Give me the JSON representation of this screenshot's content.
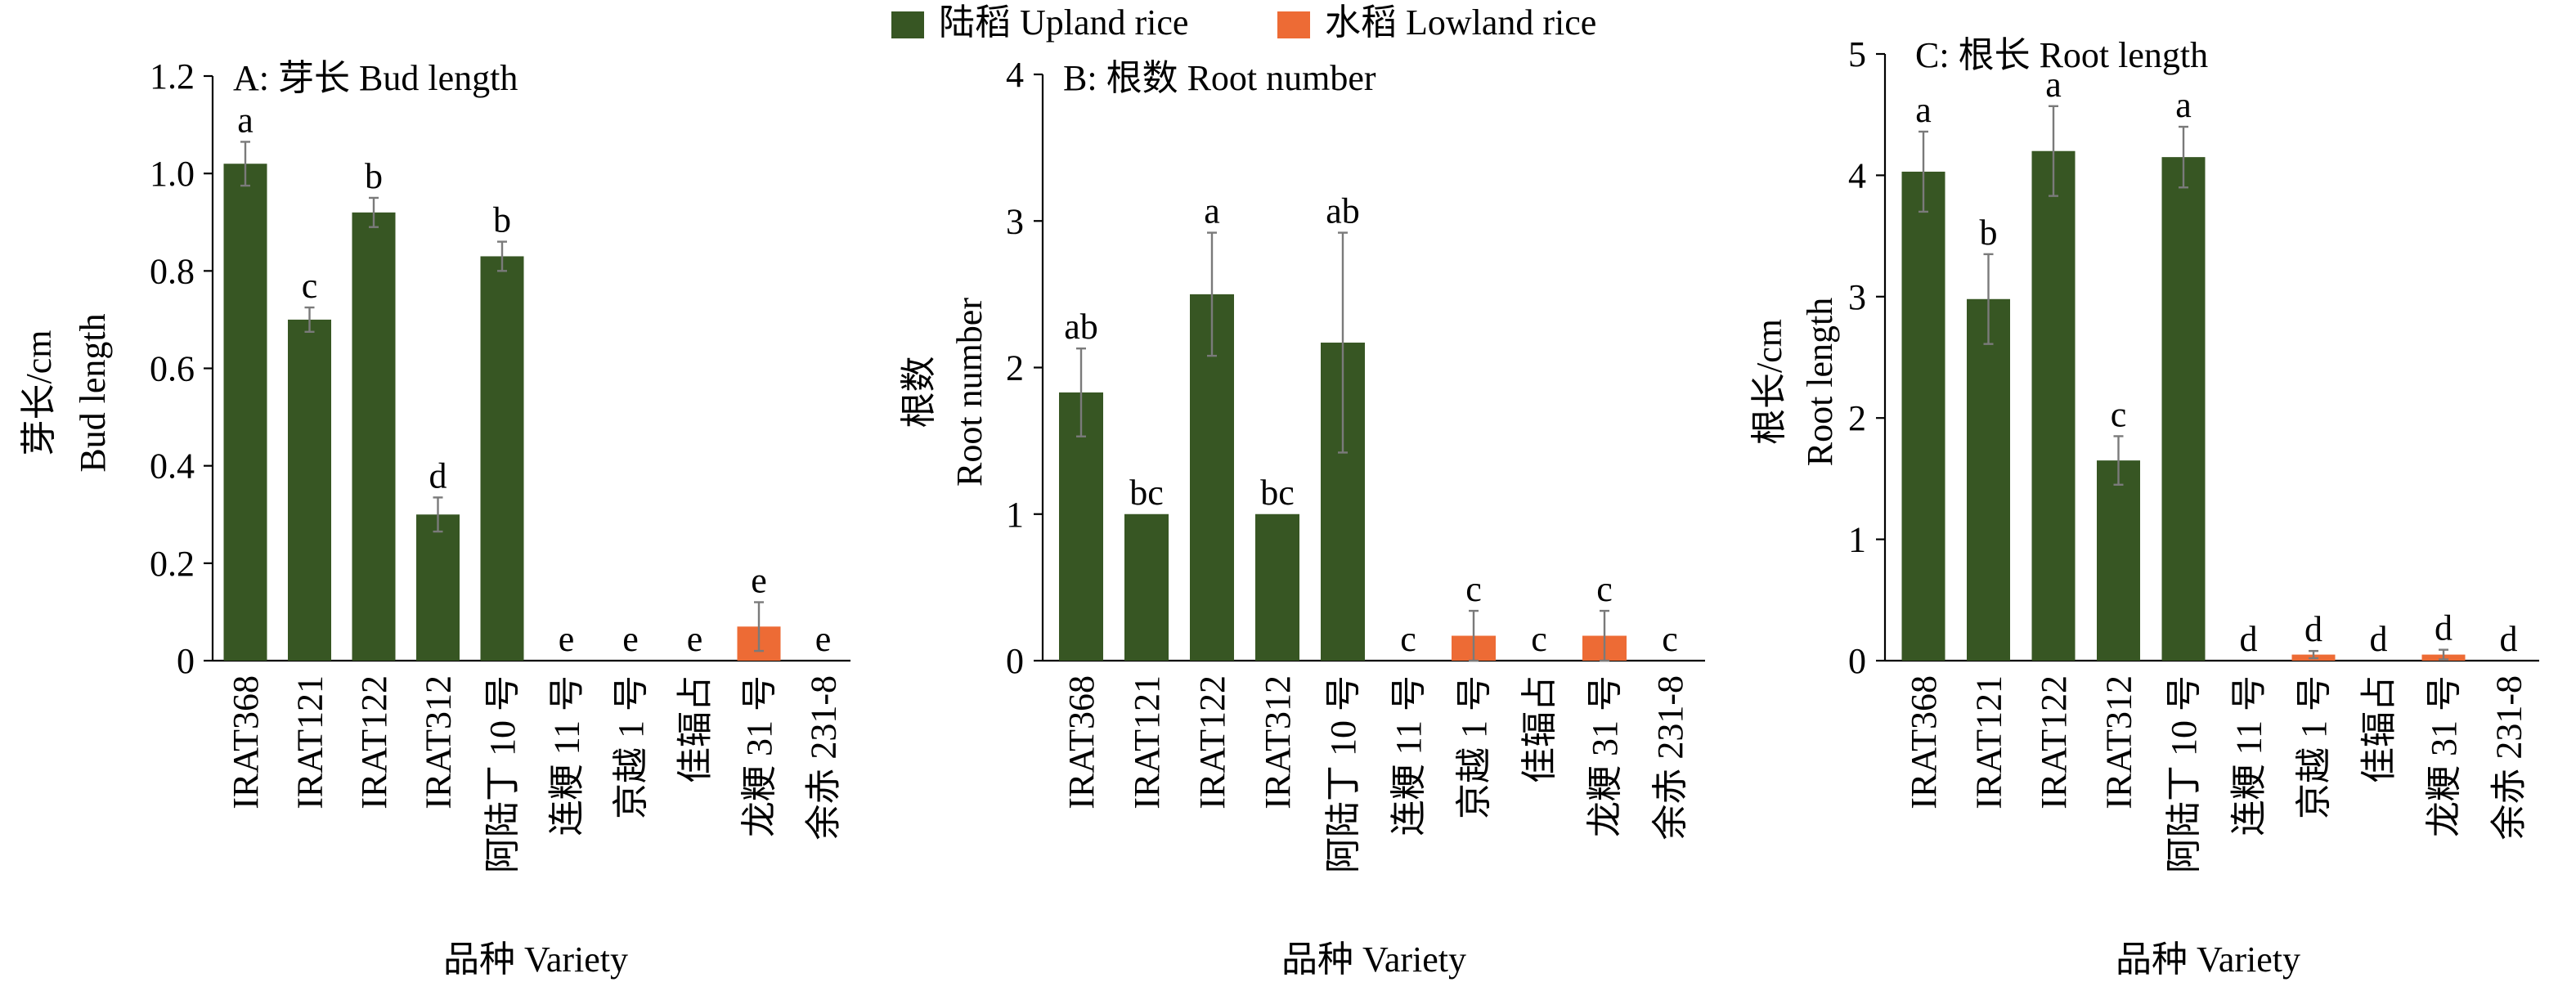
{
  "legend": {
    "items": [
      {
        "label": "陆稻 Upland rice",
        "color": "#375623"
      },
      {
        "label": "水稻 Lowland rice",
        "color": "#ED6B35"
      }
    ]
  },
  "chart_data": [
    {
      "type": "bar",
      "title": "A: 芽长  Bud length",
      "ylabel_cn": "芽长/cm",
      "ylabel_en": "Bud length",
      "xlabel": "品种 Variety",
      "ylim": [
        0,
        1.2
      ],
      "yticks": [
        "0",
        "0.2",
        "0.4",
        "0.6",
        "0.8",
        "1.0",
        "1.2"
      ],
      "categories": [
        "IRAT368",
        "IRAT121",
        "IRAT122",
        "IRAT312",
        "阿陆丁 10 号",
        "连粳 11 号",
        "京越 1 号",
        "佳辐占",
        "龙粳 31 号",
        "余赤 231-8"
      ],
      "groups": [
        "upland",
        "upland",
        "upland",
        "upland",
        "upland",
        "lowland",
        "lowland",
        "lowland",
        "lowland",
        "lowland"
      ],
      "values": [
        1.02,
        0.7,
        0.92,
        0.3,
        0.83,
        0,
        0,
        0,
        0.07,
        0
      ],
      "errors": [
        0.045,
        0.025,
        0.03,
        0.035,
        0.03,
        0,
        0,
        0,
        0.05,
        0
      ],
      "letters": [
        "a",
        "c",
        "b",
        "d",
        "b",
        "e",
        "e",
        "e",
        "e",
        "e"
      ]
    },
    {
      "type": "bar",
      "title": "B: 根数  Root number",
      "ylabel_cn": "根数",
      "ylabel_en": "Root number",
      "xlabel": "品种 Variety",
      "ylim": [
        0,
        4
      ],
      "yticks": [
        "0",
        "1",
        "2",
        "3",
        "4"
      ],
      "categories": [
        "IRAT368",
        "IRAT121",
        "IRAT122",
        "IRAT312",
        "阿陆丁 10 号",
        "连粳 11 号",
        "京越 1 号",
        "佳辐占",
        "龙粳 31 号",
        "余赤 231-8"
      ],
      "groups": [
        "upland",
        "upland",
        "upland",
        "upland",
        "upland",
        "lowland",
        "lowland",
        "lowland",
        "lowland",
        "lowland"
      ],
      "values": [
        1.83,
        1.0,
        2.5,
        1.0,
        2.17,
        0,
        0.17,
        0,
        0.17,
        0
      ],
      "errors": [
        0.3,
        0,
        0.42,
        0,
        0.75,
        0,
        0.17,
        0,
        0.17,
        0
      ],
      "letters": [
        "ab",
        "bc",
        "a",
        "bc",
        "ab",
        "c",
        "c",
        "c",
        "c",
        "c"
      ]
    },
    {
      "type": "bar",
      "title": "C: 根长  Root length",
      "ylabel_cn": "根长/cm",
      "ylabel_en": "Root length",
      "xlabel": "品种 Variety",
      "ylim": [
        0,
        5
      ],
      "yticks": [
        "0",
        "1",
        "2",
        "3",
        "4",
        "5"
      ],
      "categories": [
        "IRAT368",
        "IRAT121",
        "IRAT122",
        "IRAT312",
        "阿陆丁 10 号",
        "连粳 11 号",
        "京越 1 号",
        "佳辐占",
        "龙粳 31 号",
        "余赤 231-8"
      ],
      "groups": [
        "upland",
        "upland",
        "upland",
        "upland",
        "upland",
        "lowland",
        "lowland",
        "lowland",
        "lowland",
        "lowland"
      ],
      "values": [
        4.03,
        2.98,
        4.2,
        1.65,
        4.15,
        0,
        0.05,
        0,
        0.05,
        0
      ],
      "errors": [
        0.33,
        0.37,
        0.37,
        0.2,
        0.25,
        0,
        0.03,
        0,
        0.04,
        0
      ],
      "letters": [
        "a",
        "b",
        "a",
        "c",
        "a",
        "d",
        "d",
        "d",
        "d",
        "d"
      ]
    }
  ]
}
